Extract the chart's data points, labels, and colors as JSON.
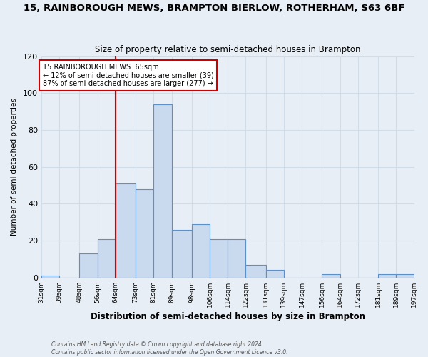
{
  "title": "15, RAINBOROUGH MEWS, BRAMPTON BIERLOW, ROTHERHAM, S63 6BF",
  "subtitle": "Size of property relative to semi-detached houses in Brampton",
  "xlabel": "Distribution of semi-detached houses by size in Brampton",
  "ylabel": "Number of semi-detached properties",
  "bins": [
    31,
    39,
    48,
    56,
    64,
    73,
    81,
    89,
    98,
    106,
    114,
    122,
    131,
    139,
    147,
    156,
    164,
    172,
    181,
    189,
    197
  ],
  "counts": [
    1,
    0,
    13,
    21,
    51,
    48,
    94,
    26,
    29,
    21,
    21,
    7,
    4,
    0,
    0,
    2,
    0,
    0,
    2,
    2
  ],
  "bar_color": "#c9d9ee",
  "bar_edge_color": "#5b8fc9",
  "vline_x": 64,
  "vline_color": "#cc0000",
  "annotation_title": "15 RAINBOROUGH MEWS: 65sqm",
  "annotation_line1": "← 12% of semi-detached houses are smaller (39)",
  "annotation_line2": "87% of semi-detached houses are larger (277) →",
  "annotation_box_color": "#ffffff",
  "annotation_box_edge": "#cc0000",
  "ylim": [
    0,
    120
  ],
  "yticks": [
    0,
    20,
    40,
    60,
    80,
    100,
    120
  ],
  "tick_labels": [
    "31sqm",
    "39sqm",
    "48sqm",
    "56sqm",
    "64sqm",
    "73sqm",
    "81sqm",
    "89sqm",
    "98sqm",
    "106sqm",
    "114sqm",
    "122sqm",
    "131sqm",
    "139sqm",
    "147sqm",
    "156sqm",
    "164sqm",
    "172sqm",
    "181sqm",
    "189sqm",
    "197sqm"
  ],
  "footer_line1": "Contains HM Land Registry data © Crown copyright and database right 2024.",
  "footer_line2": "Contains public sector information licensed under the Open Government Licence v3.0.",
  "grid_color": "#d0dce8",
  "bg_color": "#e8eef5"
}
